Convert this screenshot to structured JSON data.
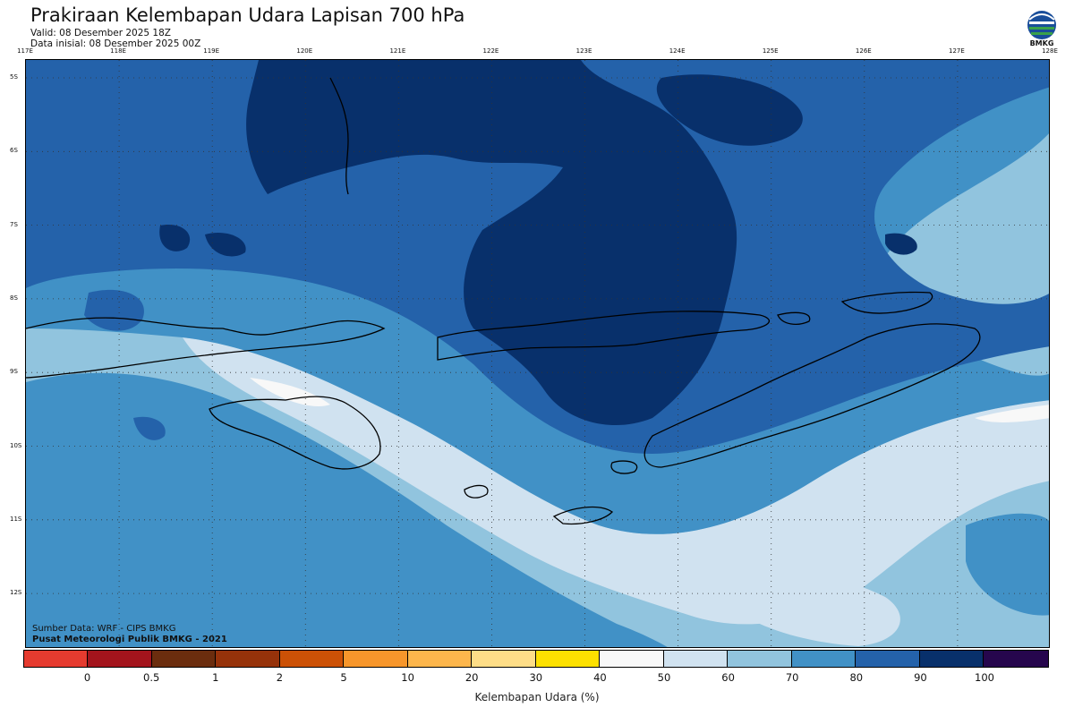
{
  "header": {
    "title": "Prakiraan Kelembapan Udara Lapisan 700 hPa",
    "valid": "Valid: 08 Desember 2025 18Z",
    "initial": "Data inisial: 08 Desember 2025 00Z"
  },
  "logo": {
    "text": "BMKG",
    "icon": "bmkg-logo-icon"
  },
  "map": {
    "lon_labels": [
      "117E",
      "118E",
      "119E",
      "120E",
      "121E",
      "122E",
      "123E",
      "124E",
      "125E",
      "126E",
      "127E",
      "128E"
    ],
    "lat_labels": [
      "5S",
      "6S",
      "7S",
      "8S",
      "9S",
      "10S",
      "11S",
      "12S"
    ],
    "colors": {
      "c90": "#08306b",
      "c80": "#2462aa",
      "c70": "#4191c6",
      "c60": "#91c4de",
      "c50": "#d0e2f0",
      "c40": "#f8f8f8"
    }
  },
  "credits": {
    "source": "Sumber Data: WRF - CIPS BMKG",
    "org": "Pusat Meteorologi Publik BMKG - 2021"
  },
  "colorbar": {
    "colors": [
      "#e53b2f",
      "#a3141c",
      "#6b2d0e",
      "#96320a",
      "#cc5106",
      "#f7962b",
      "#fdb64c",
      "#fedd87",
      "#fde000",
      "#f8f8f8",
      "#d0e2f0",
      "#91c4de",
      "#4191c6",
      "#2462aa",
      "#08306b",
      "#26064d"
    ],
    "ticks": [
      "0",
      "0.5",
      "1",
      "2",
      "5",
      "10",
      "20",
      "30",
      "40",
      "50",
      "60",
      "70",
      "80",
      "90",
      "100"
    ],
    "label": "Kelembapan Udara (%)"
  }
}
